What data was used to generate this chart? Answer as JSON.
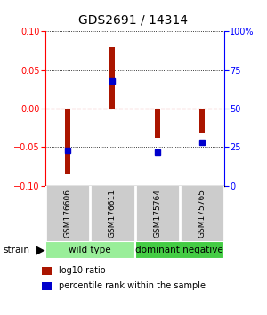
{
  "title": "GDS2691 / 14314",
  "samples": [
    "GSM176606",
    "GSM176611",
    "GSM175764",
    "GSM175765"
  ],
  "log10_ratio": [
    -0.085,
    0.08,
    -0.038,
    -0.032
  ],
  "percentile_rank": [
    23,
    68,
    22,
    28
  ],
  "ylim_left": [
    -0.1,
    0.1
  ],
  "ylim_right": [
    0,
    100
  ],
  "yticks_left": [
    -0.1,
    -0.05,
    0,
    0.05,
    0.1
  ],
  "yticks_right": [
    0,
    25,
    50,
    75,
    100
  ],
  "ytick_labels_right": [
    "0",
    "25",
    "50",
    "75",
    "100%"
  ],
  "bar_color": "#aa1500",
  "dot_color": "#0000cc",
  "group_data": [
    {
      "label": "wild type",
      "start": 0,
      "end": 2,
      "color": "#99ee99"
    },
    {
      "label": "dominant negative",
      "start": 2,
      "end": 4,
      "color": "#44cc44"
    }
  ],
  "strain_label": "strain",
  "legend_items": [
    {
      "color": "#aa1500",
      "label": "log10 ratio"
    },
    {
      "color": "#0000cc",
      "label": "percentile rank within the sample"
    }
  ],
  "bg_color": "#ffffff",
  "sample_bg": "#cccccc",
  "zero_line_color": "#cc0000",
  "dot_line_color": "#000000",
  "bar_width": 0.12,
  "dot_size": 4,
  "title_fontsize": 10,
  "tick_fontsize": 7,
  "sample_fontsize": 6.5,
  "group_fontsize": 7.5,
  "legend_fontsize": 7
}
